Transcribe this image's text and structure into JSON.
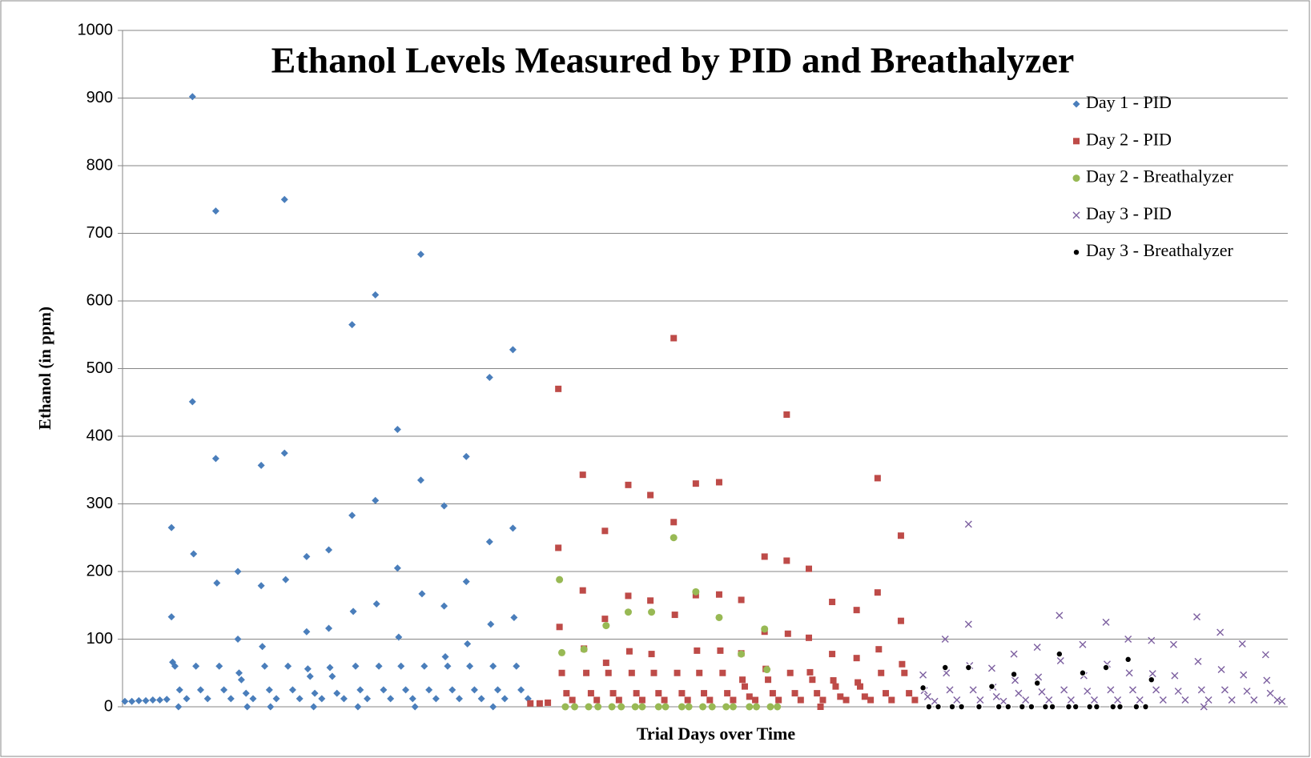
{
  "chart_data": {
    "type": "scatter",
    "title": "Ethanol Levels Measured by PID and Breathalyzer",
    "x_label": "Trial Days over Time",
    "y_label": "Ethanol (in ppm)",
    "xlim": [
      0,
      1000
    ],
    "ylim": [
      0,
      1000
    ],
    "yticks": [
      0,
      100,
      200,
      300,
      400,
      500,
      600,
      700,
      800,
      900,
      1000
    ],
    "grid": true,
    "legend": "right",
    "series": [
      {
        "name": "Day 1 - PID",
        "color": "#4a7ebb",
        "marker": "diamond",
        "x": [
          2,
          8,
          14,
          20,
          26,
          32,
          38,
          42,
          42,
          43,
          45,
          49,
          55,
          48,
          60,
          60,
          61,
          63,
          67,
          73,
          80,
          80,
          81,
          83,
          87,
          93,
          99,
          99,
          100,
          102,
          106,
          112,
          107,
          119,
          119,
          120,
          122,
          126,
          132,
          127,
          139,
          139,
          140,
          142,
          146,
          152,
          158,
          158,
          159,
          161,
          165,
          171,
          164,
          177,
          177,
          178,
          180,
          184,
          190,
          197,
          197,
          198,
          200,
          204,
          210,
          202,
          217,
          217,
          218,
          220,
          224,
          230,
          236,
          236,
          237,
          239,
          243,
          249,
          256,
          256,
          257,
          259,
          263,
          269,
          251,
          276,
          276,
          277,
          279,
          283,
          289,
          295,
          295,
          296,
          298,
          302,
          308,
          315,
          315,
          316,
          318,
          322,
          328,
          318,
          335,
          335,
          336,
          338,
          342,
          348
        ],
        "values": [
          8,
          8,
          9,
          9,
          10,
          10,
          11,
          265,
          133,
          66,
          60,
          25,
          12,
          0,
          902,
          451,
          226,
          60,
          25,
          12,
          733,
          367,
          183,
          60,
          25,
          12,
          200,
          100,
          50,
          40,
          20,
          12,
          0,
          357,
          179,
          89,
          60,
          25,
          12,
          0,
          750,
          375,
          188,
          60,
          25,
          12,
          222,
          111,
          56,
          45,
          20,
          12,
          0,
          232,
          116,
          58,
          45,
          20,
          12,
          565,
          283,
          141,
          60,
          25,
          12,
          0,
          609,
          305,
          152,
          60,
          25,
          12,
          410,
          205,
          103,
          60,
          25,
          12,
          669,
          335,
          167,
          60,
          25,
          12,
          0,
          297,
          149,
          74,
          60,
          25,
          12,
          370,
          185,
          93,
          60,
          25,
          12,
          487,
          244,
          122,
          60,
          25,
          12,
          0,
          528,
          264,
          132,
          60,
          25,
          12
        ]
      },
      {
        "name": "Day 2 - PID",
        "color": "#be4b48",
        "marker": "square",
        "x": [
          350,
          358,
          365,
          374,
          374,
          375,
          377,
          381,
          386,
          395,
          395,
          396,
          398,
          402,
          407,
          414,
          414,
          415,
          417,
          421,
          426,
          434,
          434,
          435,
          437,
          441,
          446,
          453,
          453,
          454,
          456,
          460,
          465,
          473,
          473,
          474,
          476,
          480,
          485,
          492,
          492,
          493,
          495,
          499,
          504,
          512,
          512,
          513,
          515,
          519,
          524,
          531,
          531,
          532,
          534,
          538,
          543,
          551,
          551,
          552,
          554,
          558,
          563,
          570,
          570,
          571,
          573,
          577,
          582,
          589,
          589,
          590,
          592,
          596,
          601,
          599,
          609,
          609,
          610,
          612,
          616,
          621,
          630,
          630,
          631,
          633,
          637,
          642,
          648,
          648,
          649,
          651,
          655,
          660,
          668,
          668,
          669,
          671,
          675,
          680
        ],
        "values": [
          5,
          5,
          6,
          470,
          235,
          118,
          50,
          20,
          10,
          343,
          172,
          86,
          50,
          20,
          10,
          260,
          130,
          65,
          50,
          20,
          10,
          328,
          164,
          82,
          50,
          20,
          10,
          313,
          157,
          78,
          50,
          20,
          10,
          545,
          273,
          136,
          50,
          20,
          10,
          330,
          165,
          83,
          50,
          20,
          10,
          332,
          166,
          83,
          50,
          20,
          10,
          158,
          79,
          40,
          30,
          15,
          10,
          222,
          111,
          56,
          40,
          20,
          10,
          432,
          216,
          108,
          50,
          20,
          10,
          204,
          102,
          51,
          40,
          20,
          10,
          0,
          155,
          78,
          39,
          30,
          15,
          10,
          143,
          72,
          36,
          30,
          15,
          10,
          338,
          169,
          85,
          50,
          20,
          10,
          253,
          127,
          63,
          50,
          20,
          10
        ]
      },
      {
        "name": "Day 2 - Breathalyzer",
        "color": "#98b954",
        "marker": "circle",
        "x": [
          375,
          377,
          396,
          415,
          434,
          454,
          473,
          492,
          512,
          531,
          551,
          553,
          380,
          388,
          400,
          408,
          420,
          428,
          440,
          446,
          460,
          466,
          480,
          486,
          498,
          506,
          518,
          524,
          538,
          544,
          556,
          562
        ],
        "values": [
          188,
          80,
          85,
          120,
          140,
          140,
          250,
          170,
          132,
          78,
          115,
          55,
          0,
          0,
          0,
          0,
          0,
          0,
          0,
          0,
          0,
          0,
          0,
          0,
          0,
          0,
          0,
          0,
          0,
          0,
          0,
          0
        ]
      },
      {
        "name": "Day 3 - PID",
        "color": "#7d60a0",
        "marker": "x",
        "x": [
          687,
          688,
          691,
          697,
          706,
          707,
          710,
          716,
          726,
          727,
          730,
          736,
          746,
          747,
          750,
          756,
          765,
          766,
          769,
          775,
          785,
          786,
          789,
          795,
          804,
          805,
          808,
          814,
          824,
          825,
          828,
          834,
          844,
          845,
          848,
          854,
          863,
          864,
          867,
          873,
          883,
          884,
          887,
          893,
          902,
          903,
          906,
          912,
          922,
          923,
          926,
          932,
          942,
          943,
          946,
          952,
          961,
          962,
          965,
          971,
          981,
          982,
          985,
          991,
          726,
          928,
          995
        ],
        "values": [
          47,
          24,
          15,
          8,
          100,
          50,
          25,
          10,
          122,
          61,
          25,
          10,
          57,
          29,
          15,
          8,
          78,
          39,
          20,
          10,
          88,
          44,
          22,
          10,
          135,
          68,
          25,
          10,
          92,
          46,
          23,
          10,
          125,
          63,
          25,
          10,
          100,
          50,
          25,
          10,
          98,
          49,
          25,
          10,
          92,
          46,
          23,
          10,
          133,
          67,
          25,
          10,
          110,
          55,
          25,
          10,
          93,
          47,
          23,
          10,
          77,
          39,
          20,
          10,
          270,
          0,
          8
        ]
      },
      {
        "name": "Day 3 - Breathalyzer",
        "color": "#000000",
        "marker": "dot",
        "x": [
          687,
          706,
          726,
          746,
          765,
          785,
          804,
          824,
          844,
          863,
          883,
          692,
          700,
          712,
          720,
          735,
          752,
          760,
          772,
          780,
          792,
          798,
          812,
          818,
          830,
          836,
          850,
          856,
          870,
          878
        ],
        "values": [
          28,
          58,
          58,
          30,
          48,
          35,
          78,
          50,
          58,
          70,
          40,
          0,
          0,
          0,
          0,
          0,
          0,
          0,
          0,
          0,
          0,
          0,
          0,
          0,
          0,
          0,
          0,
          0,
          0,
          0
        ]
      }
    ]
  }
}
